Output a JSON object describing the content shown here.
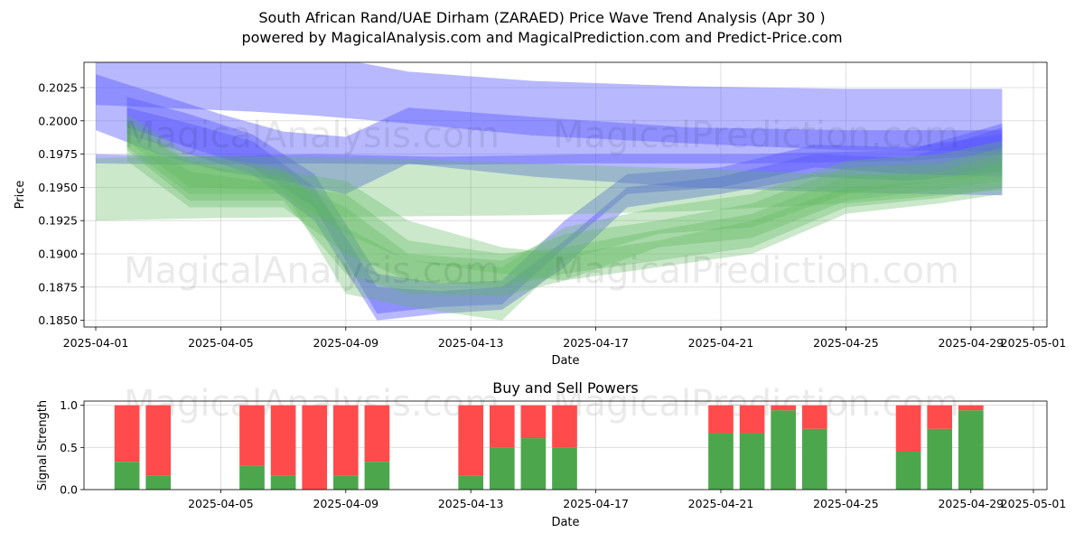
{
  "header": {
    "title": "South African Rand/UAE Dirham (ZARAED) Price Wave Trend Analysis (Apr 30 )",
    "subtitle": "powered by MagicalAnalysis.com and MagicalPrediction.com and Predict-Price.com"
  },
  "watermarks": [
    "MagicalAnalysis.com",
    "MagicalPrediction.com"
  ],
  "colors": {
    "buy": "#4CA64C",
    "sell": "#FF4B4B",
    "blue_band": "#5555FF",
    "green_band": "#5CB85C"
  },
  "chart_data": [
    {
      "type": "area",
      "xlabel": "Date",
      "ylabel": "Price",
      "x_ticks": [
        "2025-04-01",
        "2025-04-05",
        "2025-04-09",
        "2025-04-13",
        "2025-04-17",
        "2025-04-21",
        "2025-04-25",
        "2025-04-29",
        "2025-05-01"
      ],
      "y_ticks": [
        "0.1850",
        "0.1875",
        "0.1900",
        "0.1925",
        "0.1950",
        "0.1975",
        "0.2000",
        "0.2025"
      ],
      "ylim": [
        0.1845,
        0.2044
      ],
      "xlim": [
        "2025-03-31",
        "2025-05-01"
      ],
      "grid": true,
      "bands": [
        {
          "color": "blue",
          "x": [
            "2025-04-01",
            "2025-04-03",
            "2025-04-06",
            "2025-04-08",
            "2025-04-11",
            "2025-04-15",
            "2025-04-20",
            "2025-04-25",
            "2025-04-30"
          ],
          "upper": [
            0.206,
            0.2055,
            0.2052,
            0.205,
            0.2037,
            0.203,
            0.2026,
            0.2024,
            0.2024
          ],
          "lower": [
            0.2012,
            0.201,
            0.2007,
            0.2004,
            0.1998,
            0.1989,
            0.1983,
            0.1978,
            0.1977
          ]
        },
        {
          "color": "blue",
          "x": [
            "2025-04-01",
            "2025-04-03",
            "2025-04-05",
            "2025-04-07",
            "2025-04-09",
            "2025-04-11",
            "2025-04-15",
            "2025-04-20",
            "2025-04-25",
            "2025-04-30"
          ],
          "upper": [
            0.2035,
            0.202,
            0.2005,
            0.1992,
            0.1988,
            0.201,
            0.2003,
            0.1995,
            0.1993,
            0.1993
          ],
          "lower": [
            0.1993,
            0.1975,
            0.1962,
            0.1955,
            0.1945,
            0.1968,
            0.1958,
            0.195,
            0.1946,
            0.1944
          ]
        },
        {
          "color": "blue",
          "x": [
            "2025-04-01",
            "2025-04-04",
            "2025-04-08",
            "2025-04-12",
            "2025-04-17",
            "2025-04-22",
            "2025-04-27",
            "2025-04-30"
          ],
          "upper": [
            0.1975,
            0.1973,
            0.1975,
            0.1973,
            0.1975,
            0.1975,
            0.1978,
            0.1998
          ],
          "lower": [
            0.1968,
            0.1967,
            0.1968,
            0.1967,
            0.1968,
            0.1968,
            0.197,
            0.1975
          ]
        },
        {
          "color": "blue",
          "x": [
            "2025-04-02",
            "2025-04-04",
            "2025-04-06",
            "2025-04-08",
            "2025-04-10",
            "2025-04-12",
            "2025-04-14",
            "2025-04-16",
            "2025-04-18",
            "2025-04-21",
            "2025-04-24",
            "2025-04-27",
            "2025-04-30"
          ],
          "upper": [
            0.2018,
            0.2005,
            0.199,
            0.196,
            0.1885,
            0.1878,
            0.188,
            0.1925,
            0.196,
            0.1965,
            0.1982,
            0.198,
            0.199
          ],
          "lower": [
            0.1995,
            0.198,
            0.1965,
            0.1935,
            0.1855,
            0.186,
            0.1862,
            0.1905,
            0.1945,
            0.195,
            0.1965,
            0.196,
            0.1958
          ]
        },
        {
          "color": "blue",
          "x": [
            "2025-04-02",
            "2025-04-04",
            "2025-04-06",
            "2025-04-08",
            "2025-04-10",
            "2025-04-12",
            "2025-04-14",
            "2025-04-16",
            "2025-04-18",
            "2025-04-21",
            "2025-04-24",
            "2025-04-27",
            "2025-04-30"
          ],
          "upper": [
            0.201,
            0.1998,
            0.1985,
            0.195,
            0.1875,
            0.1872,
            0.1875,
            0.191,
            0.195,
            0.1958,
            0.1975,
            0.1972,
            0.1995
          ],
          "lower": [
            0.199,
            0.1975,
            0.196,
            0.1925,
            0.185,
            0.1855,
            0.1858,
            0.189,
            0.1935,
            0.1945,
            0.1958,
            0.1955,
            0.1962
          ]
        },
        {
          "color": "green",
          "x": [
            "2025-04-01",
            "2025-04-05",
            "2025-04-10",
            "2025-04-15",
            "2025-04-20",
            "2025-04-25",
            "2025-04-30"
          ],
          "upper": [
            0.1972,
            0.1974,
            0.1972,
            0.1968,
            0.1964,
            0.196,
            0.1958
          ],
          "lower": [
            0.1925,
            0.1927,
            0.1928,
            0.1929,
            0.1932,
            0.1938,
            0.1948
          ]
        },
        {
          "color": "green",
          "x": [
            "2025-04-02",
            "2025-04-04",
            "2025-04-07",
            "2025-04-09",
            "2025-04-11",
            "2025-04-14",
            "2025-04-16",
            "2025-04-19",
            "2025-04-22",
            "2025-04-25",
            "2025-04-28",
            "2025-04-30"
          ],
          "upper": [
            0.2005,
            0.1975,
            0.1965,
            0.192,
            0.1895,
            0.189,
            0.192,
            0.1935,
            0.1945,
            0.197,
            0.1975,
            0.1985
          ],
          "lower": [
            0.1985,
            0.195,
            0.1948,
            0.187,
            0.186,
            0.185,
            0.1895,
            0.1915,
            0.192,
            0.1945,
            0.1955,
            0.196
          ]
        },
        {
          "color": "green",
          "x": [
            "2025-04-02",
            "2025-04-04",
            "2025-04-07",
            "2025-04-09",
            "2025-04-11",
            "2025-04-14",
            "2025-04-16",
            "2025-04-19",
            "2025-04-22",
            "2025-04-25",
            "2025-04-28",
            "2025-04-30"
          ],
          "upper": [
            0.1998,
            0.1968,
            0.1958,
            0.1935,
            0.19,
            0.1895,
            0.1915,
            0.1925,
            0.1938,
            0.1965,
            0.1968,
            0.198
          ],
          "lower": [
            0.1978,
            0.194,
            0.194,
            0.1885,
            0.187,
            0.1868,
            0.188,
            0.1905,
            0.1912,
            0.194,
            0.1948,
            0.1955
          ]
        },
        {
          "color": "green",
          "x": [
            "2025-04-02",
            "2025-04-04",
            "2025-04-07",
            "2025-04-09",
            "2025-04-11",
            "2025-04-14",
            "2025-04-16",
            "2025-04-19",
            "2025-04-22",
            "2025-04-25",
            "2025-04-28",
            "2025-04-30"
          ],
          "upper": [
            0.199,
            0.1962,
            0.1952,
            0.1945,
            0.191,
            0.19,
            0.1905,
            0.1918,
            0.193,
            0.1958,
            0.1962,
            0.1975
          ],
          "lower": [
            0.197,
            0.1935,
            0.1935,
            0.19,
            0.188,
            0.1875,
            0.1885,
            0.1895,
            0.1905,
            0.1935,
            0.1942,
            0.195
          ]
        },
        {
          "color": "green",
          "x": [
            "2025-04-02",
            "2025-04-04",
            "2025-04-07",
            "2025-04-09",
            "2025-04-11",
            "2025-04-14",
            "2025-04-16",
            "2025-04-19",
            "2025-04-22",
            "2025-04-25",
            "2025-04-28",
            "2025-04-30"
          ],
          "upper": [
            0.2,
            0.197,
            0.1962,
            0.1955,
            0.1925,
            0.1905,
            0.19,
            0.191,
            0.1925,
            0.195,
            0.1955,
            0.197
          ],
          "lower": [
            0.198,
            0.1945,
            0.1945,
            0.1915,
            0.1895,
            0.1885,
            0.188,
            0.189,
            0.19,
            0.193,
            0.1938,
            0.1945
          ]
        }
      ]
    },
    {
      "type": "bar",
      "title": "Buy and Sell Powers",
      "xlabel": "Date",
      "ylabel": "Signal Strength",
      "x_ticks": [
        "2025-04-05",
        "2025-04-09",
        "2025-04-13",
        "2025-04-17",
        "2025-04-21",
        "2025-04-25",
        "2025-04-29",
        "2025-05-01"
      ],
      "y_ticks": [
        "0.0",
        "0.5",
        "1.0"
      ],
      "ylim": [
        0,
        1.05
      ],
      "xlim": [
        "2025-03-31",
        "2025-05-01"
      ],
      "grid": true,
      "categories": [
        "2025-04-02",
        "2025-04-03",
        "2025-04-06",
        "2025-04-07",
        "2025-04-08",
        "2025-04-09",
        "2025-04-10",
        "2025-04-13",
        "2025-04-14",
        "2025-04-15",
        "2025-04-16",
        "2025-04-21",
        "2025-04-22",
        "2025-04-23",
        "2025-04-24",
        "2025-04-27",
        "2025-04-28",
        "2025-04-29"
      ],
      "series": [
        {
          "name": "Buy",
          "values": [
            0.33,
            0.17,
            0.28,
            0.17,
            0.0,
            0.17,
            0.33,
            0.17,
            0.5,
            0.61,
            0.5,
            0.67,
            0.67,
            0.94,
            0.72,
            0.45,
            0.72,
            0.94
          ]
        },
        {
          "name": "Sell",
          "values": [
            0.67,
            0.83,
            0.72,
            0.83,
            1.0,
            0.83,
            0.67,
            0.83,
            0.5,
            0.39,
            0.5,
            0.33,
            0.33,
            0.06,
            0.28,
            0.55,
            0.28,
            0.06
          ]
        }
      ]
    }
  ]
}
